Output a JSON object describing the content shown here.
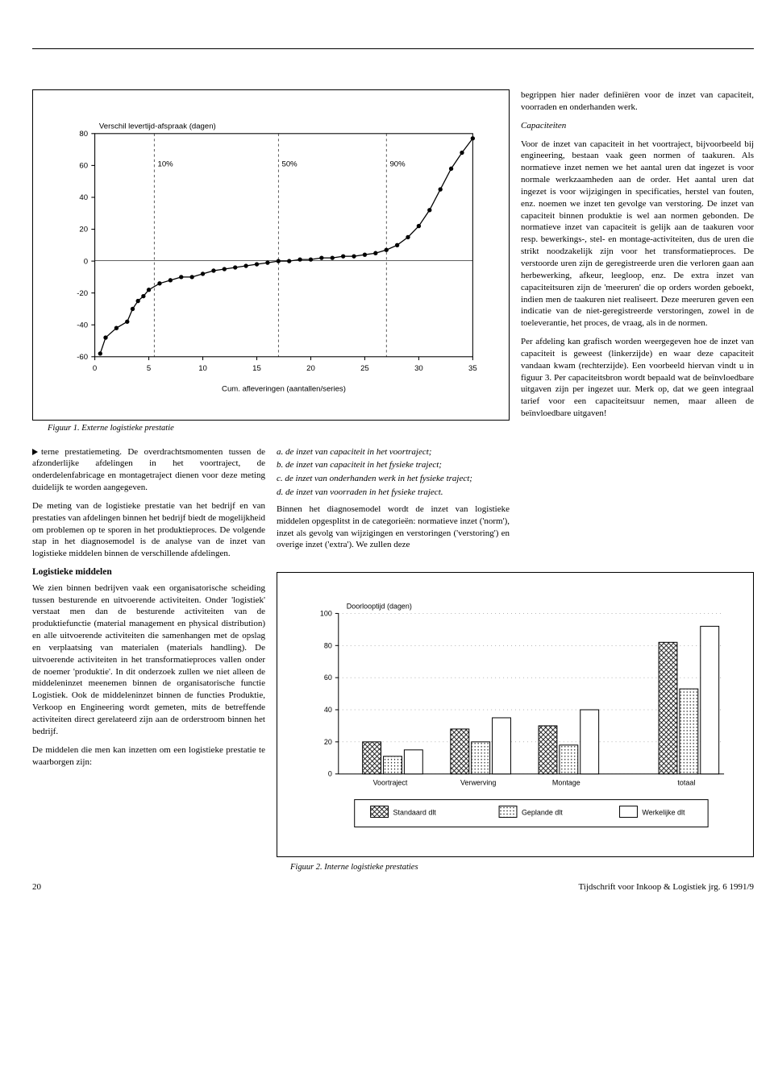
{
  "figure1": {
    "type": "line",
    "ylabel": "Verschil levertijd-afspraak (dagen)",
    "xlabel": "Cum. afleveringen (aantallen/series)",
    "caption": "Figuur 1. Externe logistieke prestatie",
    "xlim": [
      0,
      35
    ],
    "ylim": [
      -60,
      80
    ],
    "xticks": [
      0,
      5,
      10,
      15,
      20,
      25,
      30,
      35
    ],
    "yticks": [
      -60,
      -40,
      -20,
      0,
      20,
      40,
      60,
      80
    ],
    "percent_labels": [
      {
        "label": "10%",
        "x": 5.5
      },
      {
        "label": "50%",
        "x": 17
      },
      {
        "label": "90%",
        "x": 27
      }
    ],
    "series_x": [
      0.5,
      1,
      2,
      3,
      3.5,
      4,
      4.5,
      5,
      6,
      7,
      8,
      9,
      10,
      11,
      12,
      13,
      14,
      15,
      16,
      17,
      18,
      19,
      20,
      21,
      22,
      23,
      24,
      25,
      26,
      27,
      28,
      29,
      30,
      31,
      32,
      33,
      34,
      35
    ],
    "series_y": [
      -58,
      -48,
      -42,
      -38,
      -30,
      -25,
      -22,
      -18,
      -14,
      -12,
      -10,
      -10,
      -8,
      -6,
      -5,
      -4,
      -3,
      -2,
      -1,
      0,
      0,
      1,
      1,
      2,
      2,
      3,
      3,
      4,
      5,
      7,
      10,
      15,
      22,
      32,
      45,
      58,
      68,
      77
    ],
    "line_color": "#000000",
    "marker": "circle",
    "marker_size": 2.5,
    "grid_color": "#000000",
    "dashed_color": "#000000",
    "background": "#ffffff",
    "label_fontsize": 9
  },
  "figure2": {
    "type": "grouped-bar",
    "ylabel": "Doorlooptijd (dagen)",
    "caption": "Figuur 2. Interne logistieke prestaties",
    "categories": [
      "Voortraject",
      "Verwerving",
      "Montage",
      "totaal"
    ],
    "series": [
      {
        "name": "Standaard dlt",
        "values": [
          20,
          28,
          30,
          82
        ],
        "pattern": "crosshatch"
      },
      {
        "name": "Geplande dlt",
        "values": [
          11,
          20,
          18,
          53
        ],
        "pattern": "dots"
      },
      {
        "name": "Werkelijke dlt",
        "values": [
          15,
          35,
          40,
          92
        ],
        "pattern": "none"
      }
    ],
    "ylim": [
      0,
      100
    ],
    "yticks": [
      0,
      20,
      40,
      60,
      80,
      100
    ],
    "bar_colors": {
      "crosshatch": "#000000",
      "dots": "#666666",
      "none": "#ffffff"
    },
    "border_color": "#000000",
    "background": "#ffffff",
    "label_fontsize": 9,
    "legend_labels": [
      "Standaard dlt",
      "Geplande dlt",
      "Werkelijke dlt"
    ]
  },
  "column1": {
    "lead": "terne prestatiemeting. De overdrachtsmomenten tussen de afzonderlijke afdelingen in het voortraject, de onderdelenfabricage en montagetraject dienen voor deze meting duidelijk te worden aangegeven.",
    "p2": "De meting van de logistieke prestatie van het bedrijf en van prestaties van afdelingen binnen het bedrijf biedt de mogelijkheid om problemen op te sporen in het produktieproces. De volgende stap in het diagnosemodel is de analyse van de inzet van logistieke middelen binnen de verschillende afdelingen.",
    "h1": "Logistieke middelen",
    "p3": "We zien binnen bedrijven vaak een organisatorische scheiding tussen besturende en uitvoerende activiteiten. Onder 'logistiek' verstaat men dan de besturende activiteiten van de produktiefunctie (material management en physical distribution) en alle uitvoerende activiteiten die samenhangen met de opslag en verplaatsing van materialen (materials handling). De uitvoerende activiteiten in het transformatieproces vallen onder de noemer 'produktie'. In dit onderzoek zullen we niet alleen de middeleninzet meenemen binnen de organisatorische functie Logistiek. Ook de middeleninzet binnen de functies Produktie, Verkoop en Engineering wordt gemeten, mits de betreffende activiteiten direct gerelateerd zijn aan de orderstroom binnen het bedrijf.",
    "p4": "De middelen die men kan inzetten om een logistieke prestatie te waarborgen zijn:"
  },
  "column2": {
    "list": {
      "a": "a. de inzet van capaciteit in het voortraject;",
      "b": "b. de inzet van capaciteit in het fysieke traject;",
      "c": "c. de inzet van onderhanden werk in het fysieke traject;",
      "d": "d. de inzet van voorraden in het fysieke traject."
    },
    "p1": "Binnen het diagnosemodel wordt de inzet van logistieke middelen opgesplitst in de categorieën: normatieve inzet ('norm'), inzet als gevolg van wijzigingen en verstoringen ('verstoring') en overige inzet ('extra'). We zullen deze"
  },
  "column3": {
    "p0": "begrippen hier nader definiëren voor de inzet van capaciteit, voorraden en onderhanden werk.",
    "h1": "Capaciteiten",
    "p1": "Voor de inzet van capaciteit in het voortraject, bijvoorbeeld bij engineering, bestaan vaak geen normen of taakuren. Als normatieve inzet nemen we het aantal uren dat ingezet is voor normale werkzaamheden aan de order. Het aantal uren dat ingezet is voor wijzigingen in specificaties, herstel van fouten, enz. noemen we inzet ten gevolge van verstoring. De inzet van capaciteit binnen produktie is wel aan normen gebonden. De normatieve inzet van capaciteit is gelijk aan de taakuren voor resp. bewerkings-, stel- en montage-activiteiten, dus de uren die strikt noodzakelijk zijn voor het transformatieproces. De verstoorde uren zijn de geregistreerde uren die verloren gaan aan herbewerking, afkeur, leegloop, enz. De extra inzet van capaciteitsuren zijn de 'meeruren' die op orders worden geboekt, indien men de taakuren niet realiseert. Deze meeruren geven een indicatie van de niet-geregistreerde verstoringen, zowel in de toeleverantie, het proces, de vraag, als in de normen.",
    "p2": "Per afdeling kan grafisch worden weergegeven hoe de inzet van capaciteit is geweest (linkerzijde) en waar deze capaciteit vandaan kwam (rechterzijde). Een voorbeeld hiervan vindt u in figuur 3. Per capaciteitsbron wordt bepaald wat de beïnvloedbare uitgaven zijn per ingezet uur. Merk op, dat we geen integraal tarief voor een capaciteitsuur nemen, maar alleen de beïnvloedbare uitgaven!"
  },
  "footer": {
    "page": "20",
    "journal": "Tijdschrift voor Inkoop & Logistiek jrg. 6  1991/9"
  }
}
